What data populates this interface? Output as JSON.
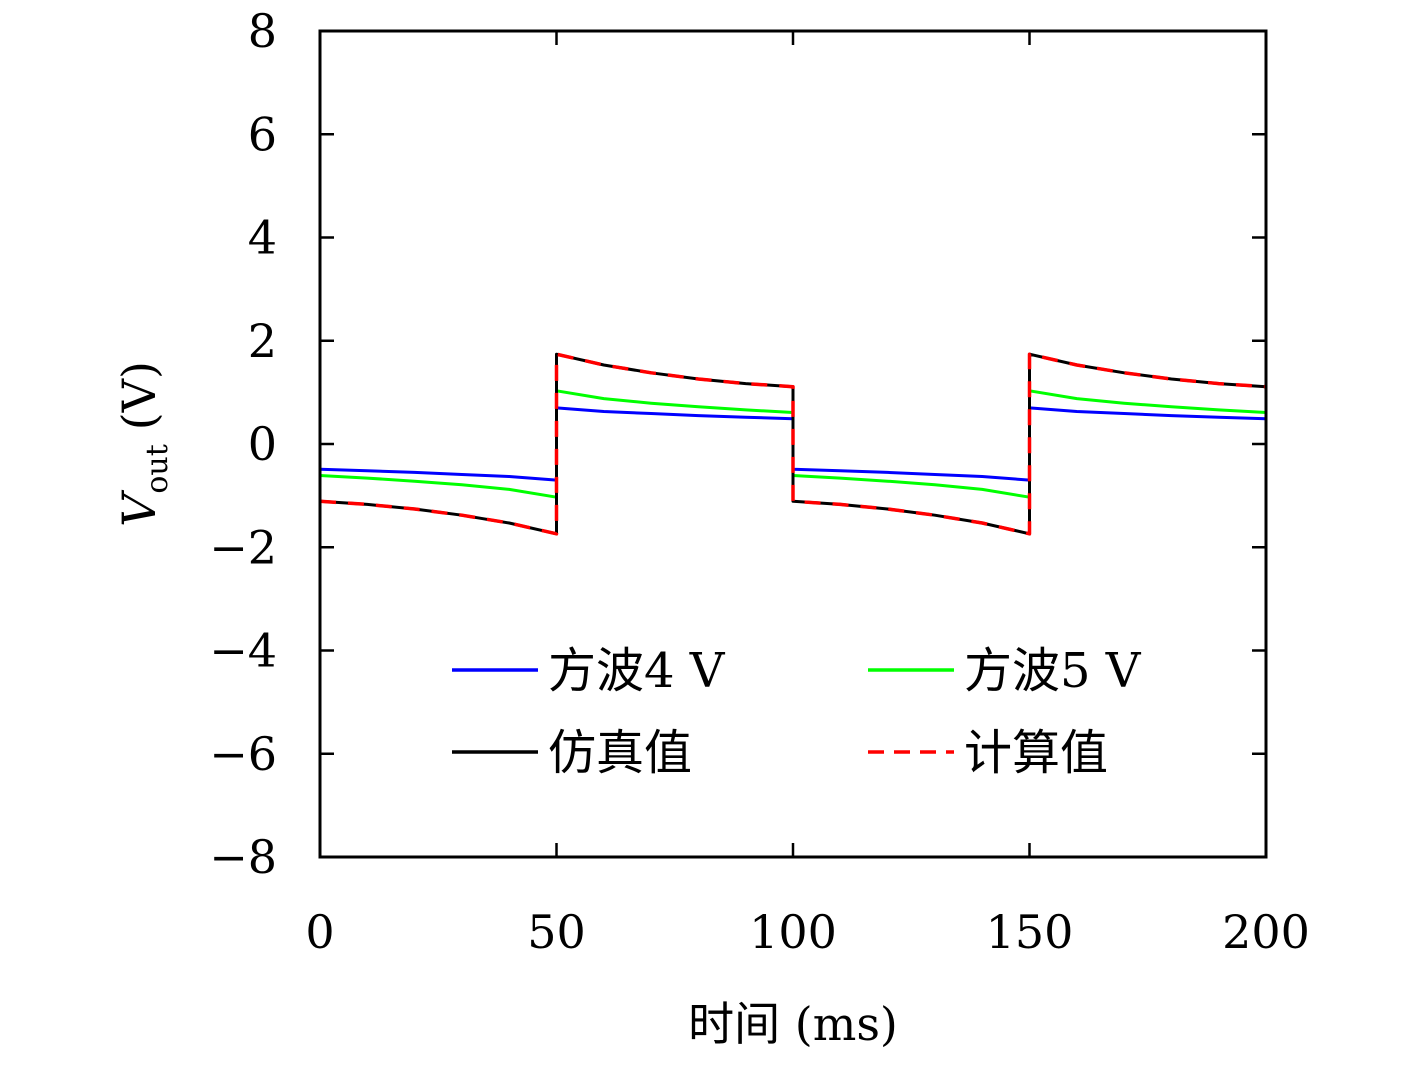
{
  "chart_data": {
    "type": "line",
    "xlabel": "时间 (ms)",
    "ylabel": {
      "main": "V",
      "subscript": "out",
      "unit": "(V)"
    },
    "xlim": [
      0,
      200
    ],
    "ylim": [
      -8,
      8
    ],
    "x_ticks": [
      0,
      50,
      100,
      150,
      200
    ],
    "y_ticks": [
      -8,
      -6,
      -4,
      -2,
      0,
      2,
      4,
      6,
      8
    ],
    "y_tick_labels": [
      "−8",
      "−6",
      "−4",
      "−2",
      "0",
      "2",
      "4",
      "6",
      "8"
    ],
    "grid": false,
    "legend": {
      "placement": "bottom-center",
      "columns": 2,
      "entries": [
        {
          "label": "方波4 V",
          "color": "#0000ff",
          "style": "solid"
        },
        {
          "label": "方波5 V",
          "color": "#00ff00",
          "style": "solid"
        },
        {
          "label": "仿真值",
          "color": "#000000",
          "style": "solid"
        },
        {
          "label": "计算值",
          "color": "#ff0000",
          "style": "dashed"
        }
      ]
    },
    "series": [
      {
        "name": "方波4 V",
        "color": "#0000ff",
        "style": "solid",
        "x": [
          0,
          10,
          20,
          30,
          40,
          50,
          50,
          60,
          70,
          80,
          90,
          100,
          100,
          110,
          120,
          130,
          140,
          150,
          150,
          160,
          170,
          180,
          190,
          200
        ],
        "y": [
          -0.49,
          -0.52,
          -0.55,
          -0.59,
          -0.63,
          -0.7,
          0.7,
          0.63,
          0.59,
          0.55,
          0.52,
          0.49,
          -0.49,
          -0.52,
          -0.55,
          -0.59,
          -0.63,
          -0.7,
          0.7,
          0.63,
          0.59,
          0.55,
          0.52,
          0.49
        ]
      },
      {
        "name": "方波5 V",
        "color": "#00ff00",
        "style": "solid",
        "x": [
          0,
          10,
          20,
          30,
          40,
          50,
          50,
          60,
          70,
          80,
          90,
          100,
          100,
          110,
          120,
          130,
          140,
          150,
          150,
          160,
          170,
          180,
          190,
          200
        ],
        "y": [
          -0.61,
          -0.66,
          -0.72,
          -0.79,
          -0.88,
          -1.03,
          1.03,
          0.88,
          0.79,
          0.72,
          0.66,
          0.61,
          -0.61,
          -0.66,
          -0.72,
          -0.79,
          -0.88,
          -1.03,
          1.03,
          0.88,
          0.79,
          0.72,
          0.66,
          0.61
        ]
      },
      {
        "name": "仿真值",
        "color": "#000000",
        "style": "solid",
        "x": [
          0,
          10,
          20,
          30,
          40,
          50,
          50,
          60,
          70,
          80,
          90,
          100,
          100,
          110,
          120,
          130,
          140,
          150,
          150,
          160,
          170,
          180,
          190,
          200
        ],
        "y": [
          -1.11,
          -1.17,
          -1.26,
          -1.38,
          -1.53,
          -1.74,
          1.74,
          1.53,
          1.38,
          1.26,
          1.17,
          1.11,
          -1.11,
          -1.17,
          -1.26,
          -1.38,
          -1.53,
          -1.74,
          1.74,
          1.53,
          1.38,
          1.26,
          1.17,
          1.11
        ]
      },
      {
        "name": "计算值",
        "color": "#ff0000",
        "style": "dashed",
        "x": [
          0,
          10,
          20,
          30,
          40,
          50,
          50,
          60,
          70,
          80,
          90,
          100,
          100,
          110,
          120,
          130,
          140,
          150,
          150,
          160,
          170,
          180,
          190,
          200
        ],
        "y": [
          -1.11,
          -1.17,
          -1.26,
          -1.38,
          -1.53,
          -1.74,
          1.74,
          1.53,
          1.38,
          1.26,
          1.17,
          1.11,
          -1.11,
          -1.17,
          -1.26,
          -1.38,
          -1.53,
          -1.74,
          1.74,
          1.53,
          1.38,
          1.26,
          1.17,
          1.11
        ]
      }
    ]
  }
}
